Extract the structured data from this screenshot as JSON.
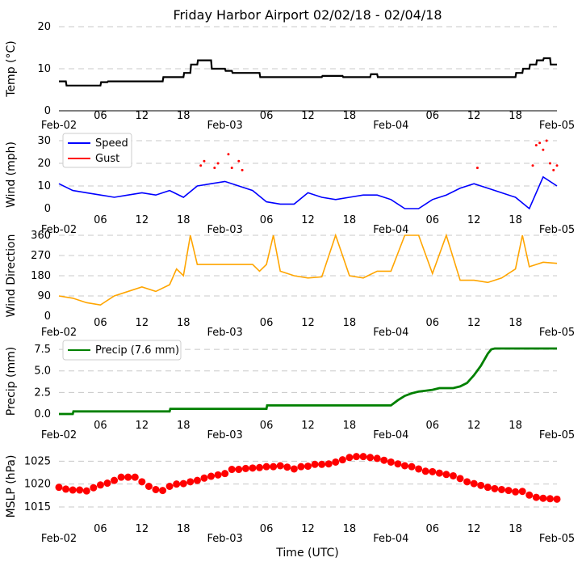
{
  "figure": {
    "title": "Friday Harbor Airport 02/02/18 - 02/04/18",
    "xlabel": "Time (UTC)",
    "x_tick_labels": [
      "Feb-02",
      "06",
      "12",
      "18",
      "Feb-03",
      "06",
      "12",
      "18",
      "Feb-04",
      "06",
      "12",
      "18",
      "Feb-05"
    ],
    "x_range_hours": [
      0,
      72
    ]
  },
  "colors": {
    "temp": "#000000",
    "speed": "#0000ff",
    "gust": "#ff0000",
    "direction": "#ffa500",
    "precip": "#008000",
    "mslp": "#ff0000"
  },
  "chart_data": [
    {
      "type": "line",
      "name": "temperature",
      "ylabel": "Temp (°C)",
      "ylim": [
        0,
        20
      ],
      "yticks": [
        0,
        10,
        20
      ],
      "grid": true,
      "x_hours": [
        0,
        1,
        1.1,
        6,
        6.1,
        7,
        7.1,
        15,
        15.1,
        18,
        18.1,
        19,
        19.1,
        20,
        20.1,
        22,
        22.1,
        24,
        24.1,
        25,
        25.1,
        29,
        29.1,
        38,
        38.1,
        41,
        41.1,
        45,
        45.1,
        46,
        46.1,
        52,
        52.1,
        60,
        60.1,
        66,
        66.1,
        67,
        67.1,
        68,
        68.1,
        69,
        69.1,
        70,
        70.1,
        71,
        71.1,
        72
      ],
      "temp_c": [
        7,
        7,
        6,
        6,
        6.8,
        6.8,
        7,
        7,
        8,
        8,
        9,
        9,
        11,
        11,
        12,
        12,
        10,
        10,
        9.5,
        9.5,
        9,
        9,
        8,
        8,
        8.3,
        8.3,
        8,
        8,
        8.7,
        8.7,
        8,
        8,
        8,
        8,
        8,
        8,
        9,
        9,
        10,
        10,
        11,
        11,
        12,
        12,
        12.5,
        12.5,
        11,
        11
      ]
    },
    {
      "type": "line",
      "name": "wind",
      "ylabel": "Wind (mph)",
      "ylim": [
        0,
        30
      ],
      "yticks": [
        0,
        10,
        20,
        30
      ],
      "grid": true,
      "legend": [
        "Speed",
        "Gust"
      ],
      "legend_position": "upper-left",
      "speed_x_hours": [
        0,
        2,
        4,
        6,
        8,
        10,
        12,
        14,
        16,
        18,
        20,
        22,
        24,
        26,
        28,
        30,
        32,
        34,
        36,
        38,
        40,
        42,
        44,
        46,
        48,
        50,
        52,
        54,
        56,
        58,
        60,
        62,
        64,
        66,
        68,
        70,
        72
      ],
      "speed_mph": [
        11,
        8,
        7,
        6,
        5,
        6,
        7,
        6,
        8,
        5,
        10,
        11,
        12,
        10,
        8,
        3,
        2,
        2,
        7,
        5,
        4,
        5,
        6,
        6,
        4,
        0,
        0,
        4,
        6,
        9,
        11,
        9,
        7,
        5,
        0,
        14,
        10
      ],
      "gust_x_hours": [
        20.5,
        21,
        22.5,
        23,
        24.5,
        25,
        26,
        26.5,
        60.5,
        68.5,
        69,
        69.5,
        70,
        70.5,
        71,
        71.5,
        72
      ],
      "gust_mph": [
        19,
        21,
        18,
        20,
        24,
        18,
        21,
        17,
        18,
        19,
        28,
        29,
        26,
        30,
        20,
        17,
        19
      ]
    },
    {
      "type": "line",
      "name": "wind_direction",
      "ylabel": "Wind Direction",
      "ylim": [
        0,
        360
      ],
      "yticks": [
        0,
        90,
        180,
        270,
        360
      ],
      "grid": true,
      "x_hours": [
        0,
        2,
        4,
        6,
        8,
        10,
        12,
        14,
        16,
        17,
        18,
        19,
        20,
        22,
        24,
        26,
        28,
        29,
        30,
        31,
        32,
        34,
        36,
        38,
        40,
        42,
        44,
        46,
        48,
        50,
        52,
        54,
        56,
        58,
        60,
        62,
        64,
        66,
        67,
        68,
        70,
        72
      ],
      "direction_deg": [
        90,
        80,
        60,
        50,
        90,
        110,
        130,
        110,
        140,
        210,
        180,
        360,
        230,
        230,
        230,
        230,
        230,
        200,
        230,
        360,
        200,
        180,
        170,
        175,
        360,
        180,
        170,
        200,
        200,
        360,
        360,
        190,
        360,
        160,
        160,
        150,
        170,
        210,
        360,
        220,
        240,
        235
      ]
    },
    {
      "type": "line",
      "name": "precipitation",
      "ylabel": "Precip (mm)",
      "ylim": [
        0,
        7.6
      ],
      "yticks": [
        0.0,
        2.5,
        5.0,
        7.5
      ],
      "grid": true,
      "legend": [
        "Precip (7.6 mm)"
      ],
      "legend_position": "upper-left",
      "x_hours": [
        0,
        2,
        2.1,
        16,
        16.1,
        30,
        30.1,
        48,
        49,
        50,
        51,
        52,
        53,
        54,
        55,
        57,
        58,
        59,
        60,
        61,
        62,
        62.5,
        63,
        72
      ],
      "precip_mm": [
        0,
        0,
        0.3,
        0.3,
        0.6,
        0.6,
        1.0,
        1.0,
        1.6,
        2.1,
        2.4,
        2.6,
        2.7,
        2.8,
        3.0,
        3.0,
        3.2,
        3.6,
        4.5,
        5.6,
        7.0,
        7.5,
        7.6,
        7.6
      ]
    },
    {
      "type": "scatter",
      "name": "mslp",
      "ylabel": "MSLP (hPa)",
      "ylim": [
        1012,
        1027
      ],
      "yticks": [
        1015,
        1020,
        1025
      ],
      "grid": true,
      "x_hours": [
        0,
        1,
        2,
        3,
        4,
        5,
        6,
        7,
        8,
        9,
        10,
        11,
        12,
        13,
        14,
        15,
        16,
        17,
        18,
        19,
        20,
        21,
        22,
        23,
        24,
        25,
        26,
        27,
        28,
        29,
        30,
        31,
        32,
        33,
        34,
        35,
        36,
        37,
        38,
        39,
        40,
        41,
        42,
        43,
        44,
        45,
        46,
        47,
        48,
        49,
        50,
        51,
        52,
        53,
        54,
        55,
        56,
        57,
        58,
        59,
        60,
        61,
        62,
        63,
        64,
        65,
        66,
        67,
        68,
        69,
        70,
        71,
        72
      ],
      "pressure_hpa": [
        1019.3,
        1018.9,
        1018.7,
        1018.7,
        1018.5,
        1019.2,
        1019.8,
        1020.2,
        1020.8,
        1021.5,
        1021.5,
        1021.5,
        1020.5,
        1019.5,
        1018.8,
        1018.6,
        1019.5,
        1020.0,
        1020.1,
        1020.5,
        1020.8,
        1021.3,
        1021.7,
        1022.0,
        1022.3,
        1023.2,
        1023.2,
        1023.4,
        1023.5,
        1023.6,
        1023.8,
        1023.8,
        1024.0,
        1023.7,
        1023.3,
        1023.8,
        1023.9,
        1024.3,
        1024.3,
        1024.4,
        1024.8,
        1025.3,
        1025.8,
        1026.0,
        1026.0,
        1025.8,
        1025.6,
        1025.2,
        1024.8,
        1024.4,
        1024.0,
        1023.8,
        1023.3,
        1022.8,
        1022.7,
        1022.4,
        1022.1,
        1021.8,
        1021.2,
        1020.5,
        1020.1,
        1019.7,
        1019.3,
        1019.0,
        1018.8,
        1018.6,
        1018.3,
        1018.4,
        1017.6,
        1017.1,
        1016.9,
        1016.8,
        1016.7
      ]
    }
  ]
}
